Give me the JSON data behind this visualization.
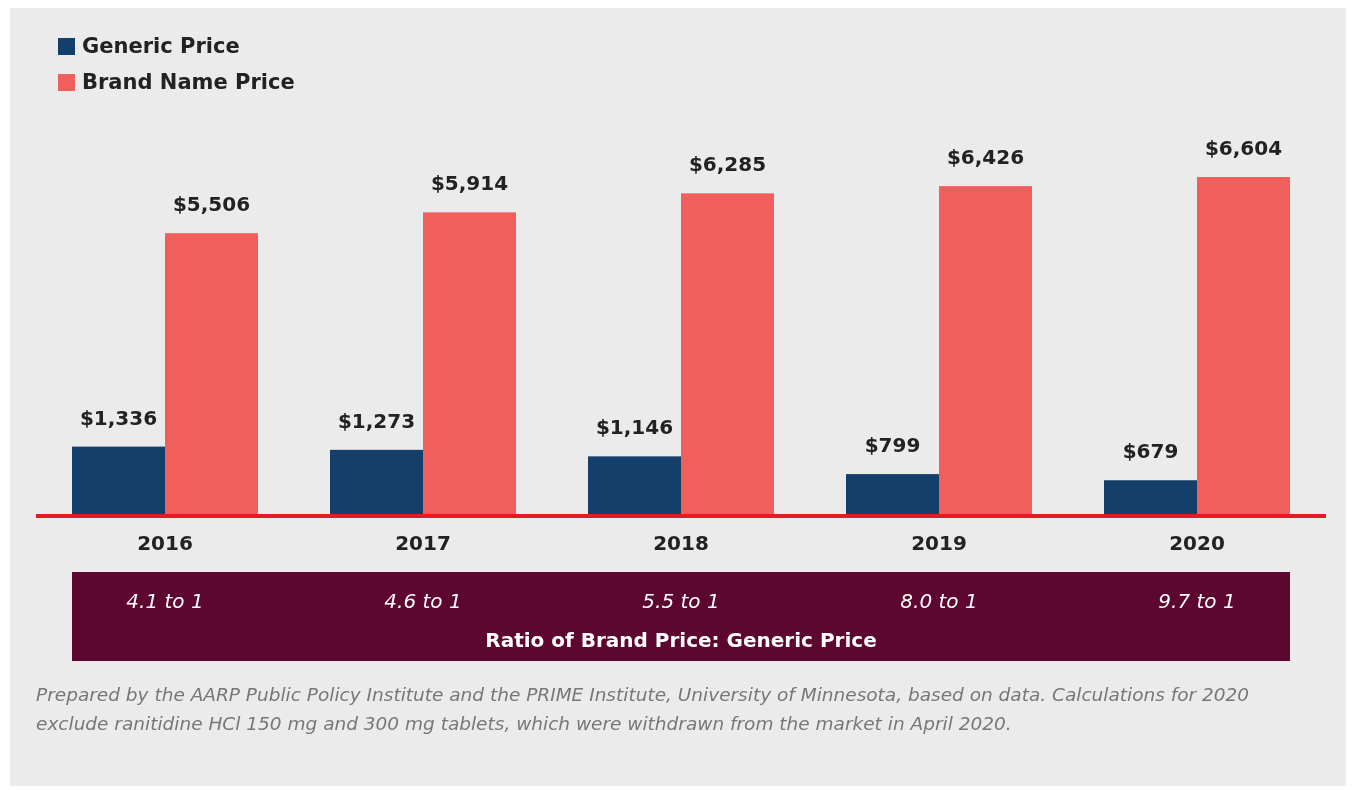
{
  "chart_data": {
    "type": "bar",
    "categories": [
      "2016",
      "2017",
      "2018",
      "2019",
      "2020"
    ],
    "series": [
      {
        "name": "Generic Price",
        "color": "#143f6b",
        "values": [
          1336,
          1273,
          1146,
          799,
          679
        ],
        "value_labels": [
          "$1,336",
          "$1,273",
          "$1,146",
          "$799",
          "$679"
        ]
      },
      {
        "name": "Brand Name Price",
        "color": "#f05f5b",
        "values": [
          5506,
          5914,
          6285,
          6426,
          6604
        ],
        "value_labels": [
          "$5,506",
          "$5,914",
          "$6,285",
          "$6,426",
          "$6,604"
        ]
      }
    ],
    "legend": "top left",
    "annotations": [
      "4.1 to 1",
      "4.6 to 1",
      "5.5 to 1",
      "8.0 to 1",
      "9.7 to 1",
      "Ratio of Brand Price: Generic Price",
      "Prepared by the AARP Public Policy Institute and the PRIME Institute, University of Minnesota, based on data. Calculations for 2020 exclude ranitidine HCl 150 mg and 300 mg tablets, which were withdrawn from the market in April 2020."
    ]
  }
}
